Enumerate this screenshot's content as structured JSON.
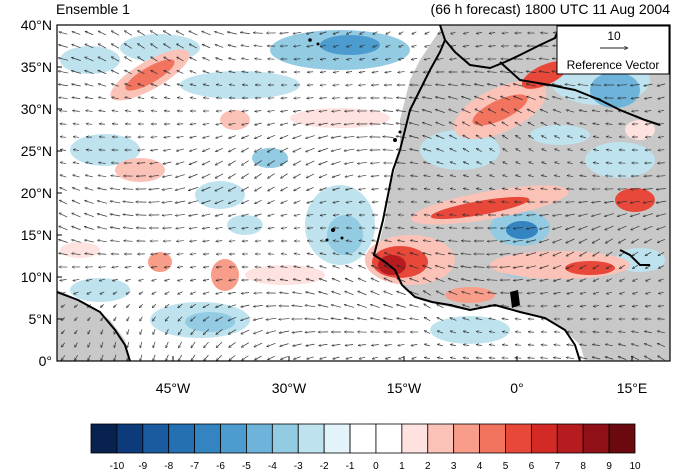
{
  "header": {
    "left_title": "Ensemble 1",
    "right_title": "(66 h forecast) 1800 UTC 11 Aug 2004"
  },
  "map": {
    "lat_labels": [
      "40°N",
      "35°N",
      "30°N",
      "25°N",
      "20°N",
      "15°N",
      "10°N",
      "5°N",
      "0°"
    ],
    "lon_labels": [
      "45°W",
      "30°W",
      "15°W",
      "0°",
      "15°E"
    ],
    "land_color": "#c8c8c8",
    "coast_color": "#000000"
  },
  "reference_vector": {
    "magnitude": "10",
    "label": "Reference Vector"
  },
  "colorbar": {
    "labels": [
      "-10",
      "-9",
      "-8",
      "-7",
      "-6",
      "-5",
      "-4",
      "-3",
      "-2",
      "-1",
      "0",
      "1",
      "2",
      "3",
      "4",
      "5",
      "6",
      "7",
      "8",
      "9",
      "10"
    ],
    "colors": [
      "#08224f",
      "#0d3a7a",
      "#1a5a9e",
      "#2570b2",
      "#3584c2",
      "#4d9ccf",
      "#6db3da",
      "#93cbe2",
      "#bfe3ee",
      "#e2f4f9",
      "#ffffff",
      "#ffffff",
      "#fde2df",
      "#fbc2b8",
      "#f89d8a",
      "#f2745f",
      "#e8483a",
      "#d42a25",
      "#b51b1f",
      "#8f1016",
      "#6a0a0e"
    ]
  }
}
